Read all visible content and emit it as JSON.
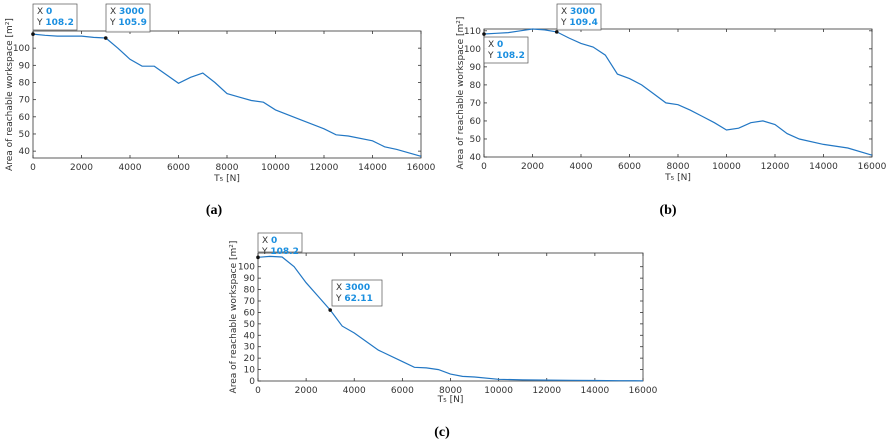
{
  "colors": {
    "line": "#2277c4",
    "tooltip_value": "#1a8fe0",
    "axis": "#333333"
  },
  "panels": [
    {
      "label": "(a)",
      "ylabel": "Area of reachable workspace [m²]",
      "xlabel": "T₅ [N]",
      "tooltips": [
        {
          "x_text": "0",
          "y_text": "108.2",
          "x": 0,
          "y": 108.2
        },
        {
          "x_text": "3000",
          "y_text": "105.9",
          "x": 3000,
          "y": 105.9
        }
      ]
    },
    {
      "label": "(b)",
      "ylabel": "Area of reachable workspace [m²]",
      "xlabel": "T₅ [N]",
      "tooltips": [
        {
          "x_text": "0",
          "y_text": "108.2",
          "x": 0,
          "y": 108.2
        },
        {
          "x_text": "3000",
          "y_text": "109.4",
          "x": 3000,
          "y": 109.4
        }
      ]
    },
    {
      "label": "(c)",
      "ylabel": "Area of reachable workspace [m²]",
      "xlabel": "T₅ [N]",
      "tooltips": [
        {
          "x_text": "0",
          "y_text": "108.2",
          "x": 0,
          "y": 108.2
        },
        {
          "x_text": "3000",
          "y_text": "62.11",
          "x": 3000,
          "y": 62.11
        }
      ]
    }
  ],
  "chart_data": [
    {
      "type": "line",
      "xlabel": "T₅ [N]",
      "ylabel": "Area of reachable workspace [m²]",
      "xlim": [
        0,
        16000
      ],
      "ylim": [
        36,
        110
      ],
      "xticks": [
        0,
        2000,
        4000,
        6000,
        8000,
        10000,
        12000,
        14000,
        16000
      ],
      "yticks": [
        40,
        50,
        60,
        70,
        80,
        90,
        100
      ],
      "x": [
        0,
        500,
        1000,
        2000,
        2500,
        3000,
        3500,
        4000,
        4500,
        5000,
        5500,
        6000,
        6500,
        7000,
        7500,
        8000,
        8500,
        9000,
        9500,
        10000,
        11000,
        12000,
        12500,
        13000,
        14000,
        14500,
        15000,
        16000
      ],
      "y": [
        108.2,
        107.5,
        107,
        107,
        106.3,
        105.9,
        100,
        93.5,
        89.5,
        89.5,
        84.5,
        79.5,
        83,
        85.5,
        80,
        73.5,
        71.5,
        69.5,
        68.5,
        64,
        58.5,
        53,
        49.5,
        48.8,
        46,
        42.5,
        41,
        37
      ]
    },
    {
      "type": "line",
      "xlabel": "T₅ [N]",
      "ylabel": "Area of reachable workspace [m²]",
      "xlim": [
        0,
        16000
      ],
      "ylim": [
        40,
        111
      ],
      "xticks": [
        0,
        2000,
        4000,
        6000,
        8000,
        10000,
        12000,
        14000,
        16000
      ],
      "yticks": [
        40,
        50,
        60,
        70,
        80,
        90,
        100,
        110
      ],
      "x": [
        0,
        500,
        1000,
        1500,
        2000,
        2500,
        3000,
        3500,
        4000,
        4500,
        5000,
        5500,
        6000,
        6500,
        7000,
        7500,
        8000,
        8500,
        9000,
        9500,
        10000,
        10500,
        11000,
        11500,
        12000,
        12500,
        13000,
        14000,
        15000,
        16000
      ],
      "y": [
        108.2,
        108.6,
        109,
        110,
        111,
        110.5,
        109.4,
        106,
        103,
        101,
        96.5,
        86,
        83.5,
        80,
        75,
        70,
        69,
        66,
        62.5,
        59,
        55,
        56,
        59,
        60,
        58,
        53,
        50,
        47,
        45,
        41
      ]
    },
    {
      "type": "line",
      "xlabel": "T₅ [N]",
      "ylabel": "Area of reachable workspace [m²]",
      "xlim": [
        0,
        16000
      ],
      "ylim": [
        0,
        112
      ],
      "xticks": [
        0,
        2000,
        4000,
        6000,
        8000,
        10000,
        12000,
        14000,
        16000
      ],
      "yticks": [
        0,
        10,
        20,
        30,
        40,
        50,
        60,
        70,
        80,
        90,
        100
      ],
      "x": [
        0,
        500,
        1000,
        1500,
        2000,
        2500,
        3000,
        3500,
        4000,
        5000,
        6000,
        6500,
        7000,
        7500,
        8000,
        8500,
        9000,
        10000,
        11000,
        12000,
        13000,
        14000,
        15000,
        16000
      ],
      "y": [
        108.2,
        109,
        108.5,
        100,
        86,
        74,
        62.11,
        48,
        42,
        27,
        17,
        12,
        11.5,
        10,
        6,
        4,
        3.5,
        1.5,
        1,
        0.8,
        0.6,
        0.4,
        0.3,
        0.2
      ]
    }
  ]
}
